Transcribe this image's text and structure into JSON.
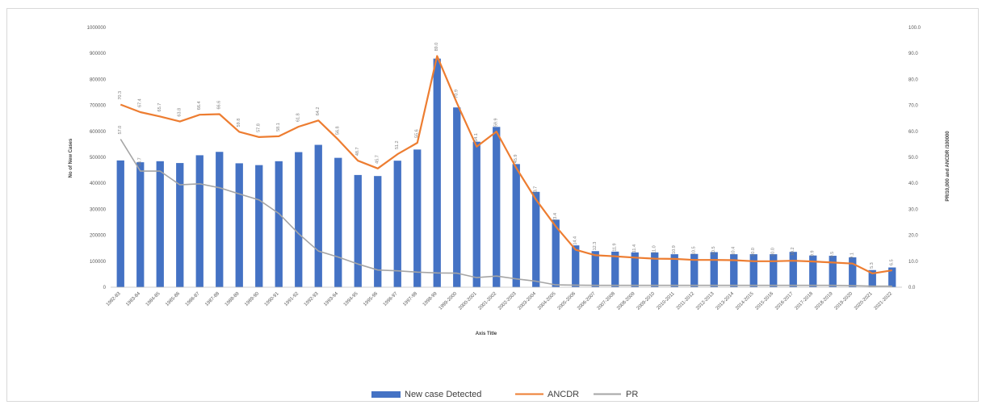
{
  "chart_data": {
    "type": "bar",
    "title": "",
    "xlabel": "Axis Title",
    "ylabel_left": "No of New Cases",
    "ylabel_right": "PR/10,000 and ANCDR /100000",
    "ylim_left": [
      0,
      1000000
    ],
    "ylim_right": [
      0,
      100
    ],
    "y_ticks_left": [
      "0",
      "100000",
      "200000",
      "300000",
      "400000",
      "500000",
      "600000",
      "700000",
      "800000",
      "900000",
      "1000000"
    ],
    "y_ticks_right": [
      "0.0",
      "10.0",
      "20.0",
      "30.0",
      "40.0",
      "50.0",
      "60.0",
      "70.0",
      "80.0",
      "90.0",
      "100.0"
    ],
    "categories": [
      "1982-83",
      "1983-84",
      "1984-85",
      "1985-86",
      "1986-87",
      "1987-88",
      "1988-89",
      "1989-90",
      "1990-91",
      "1991-92",
      "1992-93",
      "1993-94",
      "1994-95",
      "1995-96",
      "1996-97",
      "1997-98",
      "1998-99",
      "1999-2000",
      "2000-2001",
      "2001-2002",
      "2002-2003",
      "2003-2004",
      "2004-2005",
      "2005-2006",
      "2006-2007",
      "2007-2008",
      "2008-2009",
      "2009-2010",
      "2010-2011",
      "2011-2012",
      "2012-2013",
      "2013-2014",
      "2014-2015",
      "2015-2016",
      "2016-2017",
      "2017-2018",
      "2018-2019",
      "2019-2020",
      "2020-2021",
      "2021-2022"
    ],
    "legend_position": "bottom",
    "grid": false,
    "series": [
      {
        "name": "New case Detected",
        "type": "bar",
        "axis": "left",
        "color": "#4472c4",
        "values": [
          488000,
          481000,
          485000,
          478000,
          508000,
          521000,
          477000,
          470000,
          485000,
          520000,
          548000,
          498000,
          432000,
          428000,
          487000,
          530000,
          880000,
          692000,
          560000,
          617000,
          474000,
          367000,
          260000,
          161000,
          139000,
          137000,
          134000,
          134000,
          127000,
          128000,
          135000,
          127000,
          127000,
          127000,
          136000,
          122000,
          121000,
          115000,
          66000,
          76000
        ],
        "labels": [
          "",
          "",
          "",
          "",
          "",
          "",
          "",
          "",
          "",
          "",
          "",
          "",
          "",
          "",
          "",
          "",
          "",
          "",
          "",
          "",
          "",
          "",
          "",
          "",
          "",
          "",
          "",
          "",
          "",
          "",
          "",
          "",
          "",
          "",
          "",
          "",
          "",
          "",
          "",
          ""
        ]
      },
      {
        "name": "ANCDR",
        "type": "line",
        "axis": "right",
        "color": "#ed7d31",
        "values": [
          70.3,
          67.4,
          65.7,
          63.8,
          66.4,
          66.6,
          59.8,
          57.8,
          58.1,
          61.8,
          64.2,
          56.8,
          48.7,
          45.7,
          51.2,
          55.6,
          89.0,
          70.9,
          54.1,
          59.9,
          45.9,
          33.7,
          23.4,
          14.4,
          12.3,
          11.9,
          11.4,
          11.0,
          10.9,
          10.5,
          10.5,
          10.4,
          10.0,
          10.0,
          10.2,
          9.9,
          9.5,
          9.1,
          5.3,
          6.5
        ],
        "labels": [
          "70.3",
          "67.4",
          "65.7",
          "63.8",
          "66.4",
          "66.6",
          "59.8",
          "57.8",
          "58.1",
          "61.8",
          "64.2",
          "56.8",
          "48.7",
          "45.7",
          "51.2",
          "55.6",
          "89.0",
          "70.9",
          "54.1",
          "59.9",
          "45.9",
          "33.7",
          "23.4",
          "14.4",
          "12.3",
          "11.9",
          "11.4",
          "11.0",
          "10.9",
          "10.5",
          "10.5",
          "10.4",
          "10.0",
          "10.0",
          "10.2",
          "9.9",
          "9.5",
          "9.1",
          "5.3",
          "6.5"
        ]
      },
      {
        "name": "PR",
        "type": "line",
        "axis": "right",
        "color": "#a5a5a5",
        "values": [
          57.0,
          44.7,
          44.7,
          39.4,
          39.8,
          38.3,
          35.9,
          33.6,
          28.4,
          20.6,
          13.9,
          11.6,
          8.9,
          6.6,
          6.3,
          5.8,
          5.5,
          5.4,
          3.7,
          4.3,
          3.2,
          2.3,
          0.9,
          0.8,
          0.7,
          0.7,
          0.7,
          0.7,
          0.7,
          0.7,
          0.7,
          0.7,
          0.7,
          0.7,
          0.7,
          0.7,
          0.7,
          0.6,
          0.4,
          0.4
        ],
        "labels": [
          "57.0",
          "44.7",
          "",
          "",
          "",
          "",
          "",
          "",
          "",
          "",
          "",
          "",
          "",
          "",
          "",
          "",
          "",
          "",
          "",
          "",
          "",
          "",
          "",
          "",
          "",
          "",
          "",
          "",
          "",
          "",
          "",
          "",
          "",
          "",
          "",
          "",
          "",
          "",
          "",
          ""
        ]
      }
    ]
  }
}
